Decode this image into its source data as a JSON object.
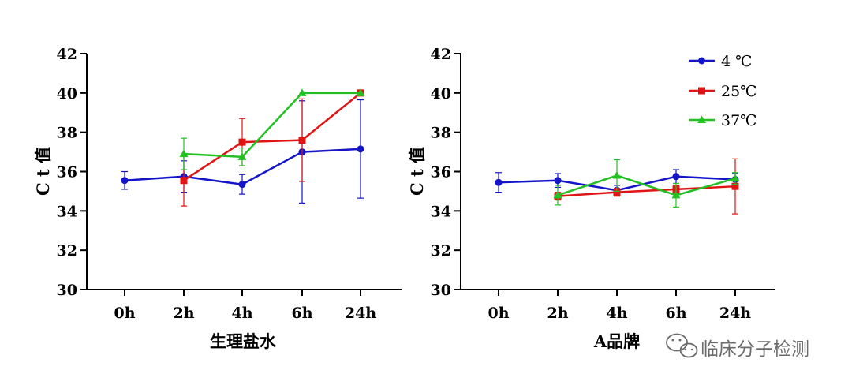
{
  "watermark": {
    "text": "临床分子检测",
    "icon": "wechat-icon",
    "color": "#6b6b6b"
  },
  "colors": {
    "4C": "#1414c8",
    "25C": "#e01414",
    "37C": "#22c022"
  },
  "legend": {
    "placement": "top-right of second chart",
    "items": [
      {
        "label": "4 ℃",
        "marker": "circle",
        "color": "#1414c8"
      },
      {
        "label": "25℃",
        "marker": "square",
        "color": "#e01414"
      },
      {
        "label": "37℃",
        "marker": "triangle",
        "color": "#22c022"
      }
    ]
  },
  "chart_data": [
    {
      "type": "line",
      "xlabel": "生理盐水",
      "ylabel": "C t 值",
      "categories": [
        "0h",
        "2h",
        "4h",
        "6h",
        "24h"
      ],
      "ylim": [
        30,
        42
      ],
      "yticks": [
        "30",
        "32",
        "34",
        "36",
        "38",
        "40",
        "42"
      ],
      "grid": false,
      "series": [
        {
          "name": "4 ℃",
          "marker": "circle",
          "color": "#1414c8",
          "values": [
            35.55,
            35.75,
            35.35,
            37.0,
            37.15
          ],
          "errors": [
            0.45,
            0.8,
            0.5,
            2.6,
            2.5
          ]
        },
        {
          "name": "25℃",
          "marker": "square",
          "color": "#e01414",
          "values": [
            null,
            35.55,
            37.5,
            37.6,
            40.0
          ],
          "errors": [
            null,
            1.3,
            1.2,
            2.1,
            null
          ]
        },
        {
          "name": "37℃",
          "marker": "triangle",
          "color": "#22c022",
          "values": [
            null,
            36.9,
            36.75,
            40.0,
            40.0
          ],
          "errors": [
            null,
            0.8,
            0.45,
            null,
            null
          ]
        }
      ]
    },
    {
      "type": "line",
      "xlabel": "A品牌",
      "ylabel": "C t 值",
      "categories": [
        "0h",
        "2h",
        "4h",
        "6h",
        "24h"
      ],
      "ylim": [
        30,
        42
      ],
      "yticks": [
        "30",
        "32",
        "34",
        "36",
        "38",
        "40",
        "42"
      ],
      "grid": false,
      "series": [
        {
          "name": "4 ℃",
          "marker": "circle",
          "color": "#1414c8",
          "values": [
            35.45,
            35.55,
            35.05,
            35.75,
            35.6
          ],
          "errors": [
            0.5,
            0.35,
            0.25,
            0.35,
            0.3
          ]
        },
        {
          "name": "25℃",
          "marker": "square",
          "color": "#e01414",
          "values": [
            null,
            34.75,
            34.95,
            35.1,
            35.25
          ],
          "errors": [
            null,
            0.2,
            0.2,
            0.2,
            1.4
          ]
        },
        {
          "name": "37℃",
          "marker": "triangle",
          "color": "#22c022",
          "values": [
            null,
            34.8,
            35.8,
            34.8,
            35.65
          ],
          "errors": [
            null,
            0.5,
            0.8,
            0.6,
            0.3
          ]
        }
      ]
    }
  ]
}
